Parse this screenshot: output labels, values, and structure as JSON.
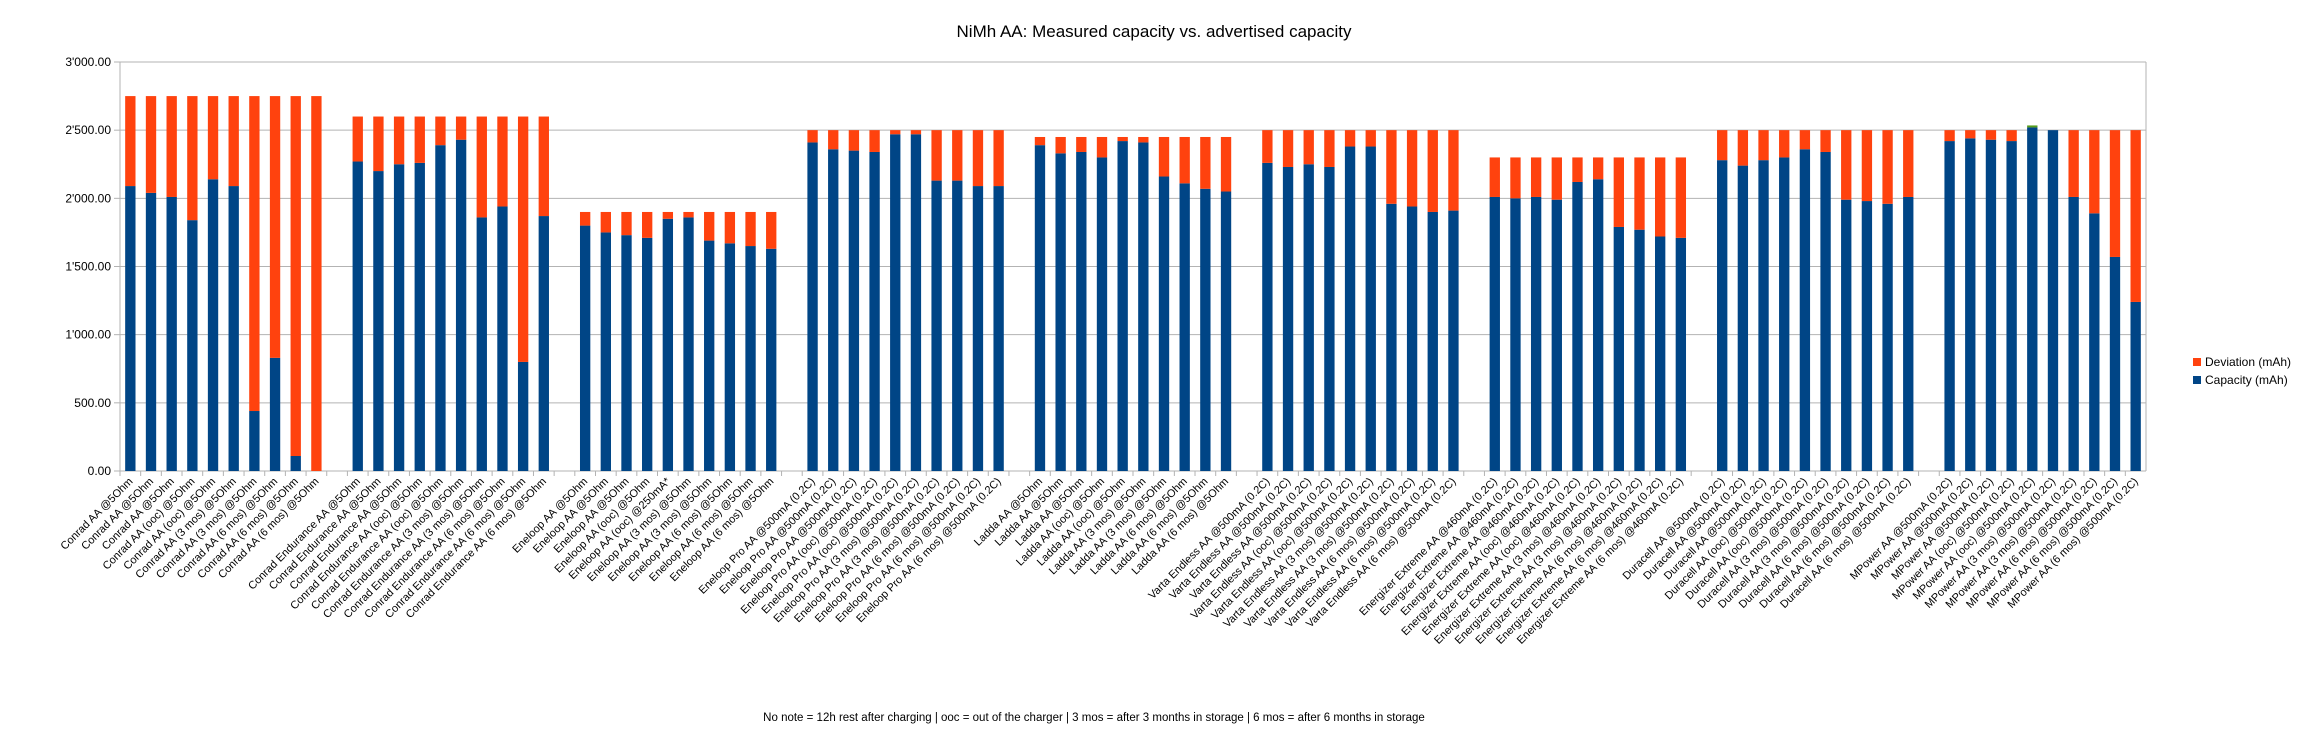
{
  "chart_data": {
    "type": "bar",
    "stacked": true,
    "title": "NiMh AA: Measured capacity vs. advertised capacity",
    "xlabel": "",
    "ylabel": "",
    "ylim": [
      0,
      3000
    ],
    "y_ticks": [
      "0.00",
      "500.00",
      "1'000.00",
      "1'500.00",
      "2'000.00",
      "2'500.00",
      "3'000.00"
    ],
    "y_tick_values": [
      0,
      500,
      1000,
      1500,
      2000,
      2500,
      3000
    ],
    "grid": true,
    "legend_position": "right",
    "footnote": "No note = 12h rest after charging | ooc = out of the charger | 3 mos = after 3 months in storage | 6 mos = after 6 months in storage",
    "series": [
      {
        "name": "Deviation (mAh)",
        "color": "#ff420e"
      },
      {
        "name": "Capacity (mAh)",
        "color": "#004586"
      }
    ],
    "extra_color": "#579d1c",
    "groups": [
      {
        "advertised": 2750,
        "bars": [
          {
            "label": "Conrad AA @5Ohm",
            "capacity": 2090
          },
          {
            "label": "Conrad AA @5Ohm",
            "capacity": 2040
          },
          {
            "label": "Conrad AA @5Ohm",
            "capacity": 2010
          },
          {
            "label": "Conrad AA (ooc) @5Ohm",
            "capacity": 1840
          },
          {
            "label": "Conrad AA (ooc) @5Ohm",
            "capacity": 2140
          },
          {
            "label": "Conrad AA (3 mos) @5Ohm",
            "capacity": 2090
          },
          {
            "label": "Conrad AA (3 mos) @5Ohm",
            "capacity": 440
          },
          {
            "label": "Conrad AA (6 mos) @5Ohm",
            "capacity": 830
          },
          {
            "label": "Conrad AA (6 mos) @5Ohm",
            "capacity": 110
          },
          {
            "label": "Conrad AA (6 mos) @5Ohm",
            "capacity": 0
          }
        ]
      },
      {
        "advertised": 2600,
        "bars": [
          {
            "label": "Conrad Endurance AA @5Ohm",
            "capacity": 2270
          },
          {
            "label": "Conrad Endurance AA @5Ohm",
            "capacity": 2200
          },
          {
            "label": "Conrad Endurance AA @5Ohm",
            "capacity": 2250
          },
          {
            "label": "Conrad Endurance AA (ooc) @5Ohm",
            "capacity": 2260
          },
          {
            "label": "Conrad Endurance AA (ooc) @5Ohm",
            "capacity": 2390
          },
          {
            "label": "Conrad Endurance AA (3 mos) @5Ohm",
            "capacity": 2430
          },
          {
            "label": "Conrad Endurance AA (3 mos) @5Ohm",
            "capacity": 1860
          },
          {
            "label": "Conrad Endurance AA (6 mos) @5Ohm",
            "capacity": 1940
          },
          {
            "label": "Conrad Endurance AA (6 mos) @5Ohm",
            "capacity": 800
          },
          {
            "label": "Conrad Endurance AA (6 mos) @5Ohm",
            "capacity": 1870
          }
        ]
      },
      {
        "advertised": 1900,
        "bars": [
          {
            "label": "Eneloop AA @5Ohm",
            "capacity": 1800
          },
          {
            "label": "Eneloop AA @5Ohm",
            "capacity": 1750
          },
          {
            "label": "Eneloop AA @5Ohm",
            "capacity": 1730
          },
          {
            "label": "Eneloop AA (ooc) @5Ohm",
            "capacity": 1710
          },
          {
            "label": "Eneloop AA (ooc) @250mA*",
            "capacity": 1850
          },
          {
            "label": "Eneloop AA (3 mos) @5Ohm",
            "capacity": 1860
          },
          {
            "label": "Eneloop AA (3 mos) @5Ohm",
            "capacity": 1690
          },
          {
            "label": "Eneloop AA (6 mos) @5Ohm",
            "capacity": 1670
          },
          {
            "label": "Eneloop AA (6 mos) @5Ohm",
            "capacity": 1650
          },
          {
            "label": "Eneloop AA (6 mos) @5Ohm",
            "capacity": 1630
          }
        ]
      },
      {
        "advertised": 2500,
        "bars": [
          {
            "label": "Eneloop Pro AA @500mA (0.2C)",
            "capacity": 2410
          },
          {
            "label": "Eneloop Pro AA @500mA (0.2C)",
            "capacity": 2360
          },
          {
            "label": "Eneloop Pro AA @500mA (0.2C)",
            "capacity": 2350
          },
          {
            "label": "Eneloop Pro AA (ooc) @500mA (0.2C)",
            "capacity": 2340
          },
          {
            "label": "Eneloop Pro AA (ooc) @500mA (0.2C)",
            "capacity": 2470
          },
          {
            "label": "Eneloop Pro AA (3 mos) @500mA (0.2C)",
            "capacity": 2470
          },
          {
            "label": "Eneloop Pro AA (3 mos) @500mA (0.2C)",
            "capacity": 2130
          },
          {
            "label": "Eneloop Pro AA (6 mos) @500mA (0.2C)",
            "capacity": 2130
          },
          {
            "label": "Eneloop Pro AA (6 mos) @500mA (0.2C)",
            "capacity": 2090
          },
          {
            "label": "Eneloop Pro AA (6 mos) @500mA (0.2C)",
            "capacity": 2090
          }
        ]
      },
      {
        "advertised": 2450,
        "bars": [
          {
            "label": "Ladda AA @5Ohm",
            "capacity": 2390
          },
          {
            "label": "Ladda AA @5Ohm",
            "capacity": 2330
          },
          {
            "label": "Ladda AA @5Ohm",
            "capacity": 2340
          },
          {
            "label": "Ladda AA (ooc) @5Ohm",
            "capacity": 2300
          },
          {
            "label": "Ladda AA (ooc) @5Ohm",
            "capacity": 2420
          },
          {
            "label": "Ladda AA (3 mos) @5Ohm",
            "capacity": 2410
          },
          {
            "label": "Ladda AA (3 mos) @5Ohm",
            "capacity": 2160
          },
          {
            "label": "Ladda AA (6 mos) @5Ohm",
            "capacity": 2110
          },
          {
            "label": "Ladda AA (6 mos) @5Ohm",
            "capacity": 2070
          },
          {
            "label": "Ladda AA (6 mos) @5Ohm",
            "capacity": 2050
          }
        ]
      },
      {
        "advertised": 2500,
        "bars": [
          {
            "label": "Varta Endless AA @500mA (0.2C)",
            "capacity": 2260
          },
          {
            "label": "Varta Endless AA @500mA (0.2C)",
            "capacity": 2230
          },
          {
            "label": "Varta Endless AA @500mA (0.2C)",
            "capacity": 2250
          },
          {
            "label": "Varta Endless AA (ooc) @500mA (0.2C)",
            "capacity": 2230
          },
          {
            "label": "Varta Endless AA (ooc) @500mA (0.2C)",
            "capacity": 2380
          },
          {
            "label": "Varta Endless AA (3 mos) @500mA (0.2C)",
            "capacity": 2380
          },
          {
            "label": "Varta Endless AA (3 mos) @500mA (0.2C)",
            "capacity": 1960
          },
          {
            "label": "Varta Endless AA (6 mos) @500mA (0.2C)",
            "capacity": 1940
          },
          {
            "label": "Varta Endless AA (6 mos) @500mA (0.2C)",
            "capacity": 1900
          },
          {
            "label": "Varta Endless AA (6 mos) @500mA (0.2C)",
            "capacity": 1910
          }
        ]
      },
      {
        "advertised": 2300,
        "bars": [
          {
            "label": "Energizer Extreme AA @460mA (0.2C)",
            "capacity": 2010
          },
          {
            "label": "Energizer Extreme AA @460mA (0.2C)",
            "capacity": 2000
          },
          {
            "label": "Energizer Extreme AA @460mA (0.2C)",
            "capacity": 2010
          },
          {
            "label": "Energizer Extreme AA (ooc) @460mA (0.2C)",
            "capacity": 1990
          },
          {
            "label": "Energizer Extreme AA (ooc) @460mA (0.2C)",
            "capacity": 2120
          },
          {
            "label": "Energizer Extreme AA (3 mos) @460mA (0.2C)",
            "capacity": 2140
          },
          {
            "label": "Energizer Extreme AA (3 mos) @460mA (0.2C)",
            "capacity": 1790
          },
          {
            "label": "Energizer Extreme AA (6 mos) @460mA (0.2C)",
            "capacity": 1770
          },
          {
            "label": "Energizer Extreme AA (6 mos) @460mA (0.2C)",
            "capacity": 1720
          },
          {
            "label": "Energizer Extreme AA (6 mos) @460mA (0.2C)",
            "capacity": 1710
          }
        ]
      },
      {
        "advertised": 2500,
        "bars": [
          {
            "label": "Duracell AA @500mA (0.2C)",
            "capacity": 2280
          },
          {
            "label": "Duracell AA @500mA (0.2C)",
            "capacity": 2240
          },
          {
            "label": "Duracell AA @500mA (0.2C)",
            "capacity": 2280
          },
          {
            "label": "Duracell AA (ooc) @500mA (0.2C)",
            "capacity": 2300
          },
          {
            "label": "Duracell AA (ooc) @500mA (0.2C)",
            "capacity": 2360
          },
          {
            "label": "Duracell AA (3 mos) @500mA (0.2C)",
            "capacity": 2340
          },
          {
            "label": "Duracell AA (3 mos) @500mA (0.2C)",
            "capacity": 1990
          },
          {
            "label": "Duracell AA (6 mos) @500mA (0.2C)",
            "capacity": 1980
          },
          {
            "label": "Duracell AA (6 mos) @500mA (0.2C)",
            "capacity": 1960
          },
          {
            "label": "Duracell AA (6 mos) @500mA (0.2C)",
            "capacity": 2010
          }
        ]
      },
      {
        "advertised": 2500,
        "bars": [
          {
            "label": "MPower AA @500mA (0.2C)",
            "capacity": 2420
          },
          {
            "label": "MPower AA @500mA (0.2C)",
            "capacity": 2440
          },
          {
            "label": "MPower AA @500mA (0.2C)",
            "capacity": 2430
          },
          {
            "label": "MPower AA (ooc) @500mA (0.2C)",
            "capacity": 2420
          },
          {
            "label": "MPower AA (ooc) @500mA (0.2C)",
            "capacity": 2520
          },
          {
            "label": "MPower AA (3 mos) @500mA (0.2C)",
            "capacity": 2500
          },
          {
            "label": "MPower AA (3 mos) @500mA (0.2C)",
            "capacity": 2010
          },
          {
            "label": "MPower AA (6 mos) @500mA (0.2C)",
            "capacity": 1890
          },
          {
            "label": "MPower AA (6 mos) @500mA (0.2C)",
            "capacity": 1570
          },
          {
            "label": "MPower AA (6 mos) @500mA (0.2C)",
            "capacity": 1240
          }
        ]
      }
    ]
  }
}
